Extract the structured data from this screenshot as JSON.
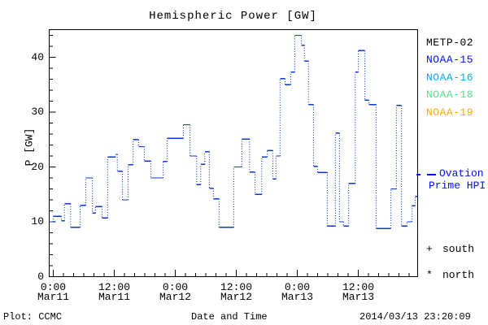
{
  "page": {
    "background": "#ffffff"
  },
  "chart_data": {
    "type": "line",
    "title": "Hemispheric Power [GW]",
    "xlabel": "Date and Time",
    "ylabel": "P [GW]",
    "ylim": [
      0,
      45
    ],
    "grid": false,
    "y_axis": {
      "major_ticks": [
        0,
        10,
        20,
        30,
        40
      ],
      "minor_step": 2
    },
    "x_axis": {
      "unit": "hours since Mar11 0:00",
      "range": [
        -0.8,
        71.7
      ],
      "major_ticks": [
        0,
        12,
        24,
        36,
        48,
        60
      ],
      "minor_step_hours": 2,
      "tick_labels": [
        {
          "time": "0:00",
          "date": "Mar11"
        },
        {
          "time": "12:00",
          "date": "Mar11"
        },
        {
          "time": "0:00",
          "date": "Mar12"
        },
        {
          "time": "12:00",
          "date": "Mar12"
        },
        {
          "time": "0:00",
          "date": "Mar13"
        },
        {
          "time": "12:00",
          "date": "Mar13"
        }
      ]
    },
    "series": [
      {
        "name": "Ovation Prime HPI",
        "style": "step-dotted",
        "color": "#0a3ad0",
        "steps_hour_gw": [
          [
            -0.8,
            10
          ],
          [
            0,
            11
          ],
          [
            1.6,
            10.2
          ],
          [
            2.2,
            13.3
          ],
          [
            3.4,
            9
          ],
          [
            5.3,
            13
          ],
          [
            6.4,
            18
          ],
          [
            7.7,
            11.6
          ],
          [
            8.3,
            12.8
          ],
          [
            9.6,
            10.7
          ],
          [
            10.7,
            21.8
          ],
          [
            12.2,
            22.3
          ],
          [
            12.6,
            19.2
          ],
          [
            13.6,
            14
          ],
          [
            14.7,
            20.4
          ],
          [
            15.7,
            25
          ],
          [
            16.8,
            23.7
          ],
          [
            17.9,
            21.1
          ],
          [
            19.2,
            18
          ],
          [
            21.6,
            21
          ],
          [
            22.4,
            25.2
          ],
          [
            25.6,
            27.7
          ],
          [
            26.9,
            22
          ],
          [
            28.2,
            16.8
          ],
          [
            29,
            20.5
          ],
          [
            29.8,
            22.8
          ],
          [
            30.7,
            16.1
          ],
          [
            31.5,
            14.2
          ],
          [
            32.6,
            9
          ],
          [
            35.5,
            20
          ],
          [
            37.1,
            25.1
          ],
          [
            38.6,
            19.1
          ],
          [
            39.7,
            15
          ],
          [
            41,
            21.8
          ],
          [
            42.1,
            23
          ],
          [
            43.2,
            17.8
          ],
          [
            43.8,
            22
          ],
          [
            44.6,
            36.1
          ],
          [
            45.6,
            35
          ],
          [
            46.7,
            37.3
          ],
          [
            47.5,
            44
          ],
          [
            48.8,
            42.2
          ],
          [
            49.4,
            39.3
          ],
          [
            50.2,
            31.4
          ],
          [
            51.2,
            20.1
          ],
          [
            52,
            19
          ],
          [
            53.9,
            9.2
          ],
          [
            55.5,
            26.2
          ],
          [
            56.3,
            10
          ],
          [
            57.1,
            9.2
          ],
          [
            58.1,
            17
          ],
          [
            59.4,
            37.3
          ],
          [
            60,
            41.2
          ],
          [
            61.3,
            32.2
          ],
          [
            62.1,
            31.4
          ],
          [
            63.5,
            8.8
          ],
          [
            66.4,
            16
          ],
          [
            67.5,
            31.2
          ],
          [
            68.5,
            9.2
          ],
          [
            69.6,
            10
          ],
          [
            70.6,
            12.9
          ],
          [
            71.2,
            14.6
          ]
        ]
      }
    ]
  },
  "legend": {
    "satellites": [
      {
        "label": "METP-02",
        "color": "#000000"
      },
      {
        "label": "NOAA-15",
        "color": "#0011ff"
      },
      {
        "label": "NOAA-16",
        "color": "#00aaff"
      },
      {
        "label": "NOAA-18",
        "color": "#55dd88"
      },
      {
        "label": "NOAA-19",
        "color": "#ffaa00"
      }
    ],
    "model": {
      "label_line1": "Ovation",
      "label_line2": "Prime HPI",
      "color": "#0011ff"
    },
    "hemisphere_markers": [
      {
        "symbol": "+",
        "label": "south"
      },
      {
        "symbol": "*",
        "label": "north"
      }
    ]
  },
  "footer": {
    "plot_credit": "Plot: CCMC",
    "timestamp": "2014/03/13 23:20:09"
  }
}
